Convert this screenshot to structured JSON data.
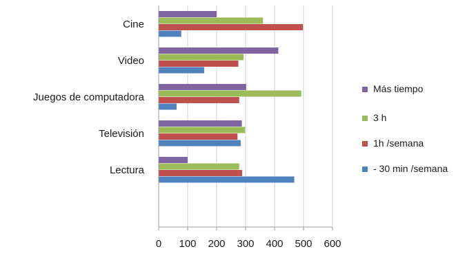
{
  "chart_data": {
    "type": "bar",
    "orientation": "horizontal",
    "categories": [
      "Lectura",
      "Televisión",
      "Juegos de computadora",
      "Video",
      "Cine"
    ],
    "series": [
      {
        "name": "- 30 min /semana",
        "color": "#4f81bd",
        "values": [
          468,
          283,
          62,
          157,
          78
        ]
      },
      {
        "name": "1h /semana",
        "color": "#c0504d",
        "values": [
          288,
          272,
          278,
          275,
          498
        ]
      },
      {
        "name": "3 h",
        "color": "#9bbb59",
        "values": [
          278,
          298,
          492,
          293,
          360
        ]
      },
      {
        "name": "Más tiempo",
        "color": "#8064a2",
        "values": [
          100,
          287,
          302,
          413,
          200
        ]
      }
    ],
    "xlim": [
      0,
      600
    ],
    "xticks": [
      0,
      100,
      200,
      300,
      400,
      500,
      600
    ],
    "xlabel": "",
    "ylabel": "",
    "grid": true,
    "legend": "right",
    "legend_order": [
      "Más tiempo",
      "3 h",
      "1h /semana",
      "- 30 min /semana"
    ]
  }
}
